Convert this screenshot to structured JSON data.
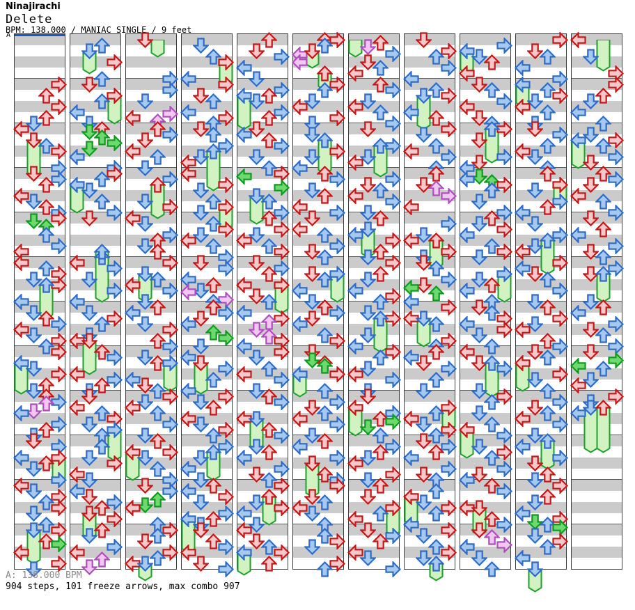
{
  "header": {
    "artist": "Ninajirachi",
    "title": "Delete",
    "meta": "BPM: 138.000 / MANIAC SINGLE / 9 feet"
  },
  "footer": {
    "section_bpm": "A: 138.000 BPM",
    "stats": "904 steps, 101 freeze arrows, max combo 907"
  },
  "colors": {
    "stripe_gray": "#cbcbcb",
    "stripe_white": "#ffffff",
    "measure_line": "#5a5a5a",
    "column_border": "#3c3c3c",
    "section_line": "#1a57c8",
    "notes": {
      "r": [
        "#f5c9c9",
        "#c01818"
      ],
      "b": [
        "#a8c9ee",
        "#2f6bc4"
      ],
      "g": [
        "#6fd96f",
        "#0f9a1f"
      ],
      "p": [
        "#f0c8f0",
        "#b14cc0"
      ],
      "freeze": [
        "#d2f2c2",
        "#18a228"
      ]
    }
  },
  "chart": {
    "section_label": "A",
    "columns": [
      {
        "section": "A",
        "measures": [
          "........",
          "R.U.R.UD",
          "L..UR..R",
          "DRU.LDUR",
          "R..U.RL.",
          "LURDR..L",
          ".DURLDRU",
          "R..DR.UD",
          "UR.L.RUD",
          "DR.LUD.R",
          "LDRURD.U",
          "R.U.L.RD"
        ],
        "extras": [
          [
            65,
            1,
            "g"
          ],
          [
            67,
            2,
            "g"
          ],
          [
            130.67,
            2,
            "p"
          ],
          [
            133.33,
            1,
            "p"
          ],
          [
            181,
            3,
            "g"
          ]
        ],
        "freezes": [
          [
            36,
            1,
            11,
            "r"
          ],
          [
            88,
            2,
            10,
            "b"
          ],
          [
            116,
            0,
            9,
            "b"
          ],
          [
            150,
            3,
            7,
            "r"
          ],
          [
            176,
            1,
            10,
            "b"
          ]
        ]
      },
      {
        "measures": [
          ".U..R..U",
          "D..U.L.D",
          "U....L.R",
          "RU.D.U.R",
          "D......U",
          "LR.D.R.L",
          ".DRU.DL.",
          "UR..LRUD",
          "D.LURD.U",
          ".U.DR.LD",
          ".LDRU.R.",
          "UD.RL..."
        ],
        "extras": [
          [
            33,
            1,
            "g"
          ],
          [
            35,
            2,
            "g"
          ],
          [
            37,
            3,
            "g"
          ],
          [
            39,
            1,
            "g"
          ],
          [
            186.67,
            2,
            "p"
          ],
          [
            189.33,
            1,
            "p"
          ]
        ],
        "freezes": [
          [
            4,
            1,
            6,
            "b"
          ],
          [
            20,
            3,
            8,
            "r"
          ],
          [
            52,
            0,
            8,
            "b"
          ],
          [
            76,
            2,
            16,
            "b"
          ],
          [
            108,
            1,
            10,
            "r"
          ],
          [
            140,
            3,
            9,
            "b"
          ],
          [
            170,
            1,
            7,
            "r"
          ]
        ]
      },
      {
        "measures": [
          "D......R",
          ".R.D..L.",
          "URD.LU.D",
          ".R...DR.",
          "LD.RUDU.",
          "R..ULR.D",
          "UL.DR.UR",
          ".DU..LDU",
          "RDLU.R.D",
          "U.RD.U.R",
          "DR..L..U",
          "RUD.RUL."
        ],
        "extras": [
          [
            26.67,
            3,
            "p"
          ],
          [
            29.33,
            2,
            "p"
          ],
          [
            165,
            2,
            "g"
          ],
          [
            167,
            1,
            "g"
          ]
        ],
        "freezes": [
          [
            0,
            2,
            4,
            "n"
          ],
          [
            52,
            2,
            10,
            "r"
          ],
          [
            84,
            1,
            8,
            "b"
          ],
          [
            116,
            3,
            8,
            "b"
          ],
          [
            148,
            0,
            8,
            "r"
          ],
          [
            188,
            1,
            4,
            "b"
          ]
        ]
      },
      {
        "measures": [
          ".D.U...L",
          "R.DU.LRU",
          "DU.R.DL.",
          "L.RD.U.D",
          ".URDLU.R",
          "DR.LUD.U",
          "URDL...D",
          ".L.R.U.L",
          "RDU.LDRU",
          ".R.D.L.D",
          "ULRD.RUD",
          "D.URL.DR"
        ],
        "extras": [
          [
            90.67,
            0,
            "p"
          ],
          [
            93.33,
            3,
            "p"
          ],
          [
            105,
            2,
            "g"
          ],
          [
            107,
            3,
            "g"
          ]
        ],
        "freezes": [
          [
            8,
            3,
            6,
            "r"
          ],
          [
            40,
            2,
            12,
            "b"
          ],
          [
            60,
            3,
            6,
            "r"
          ],
          [
            116,
            1,
            9,
            "r"
          ],
          [
            148,
            2,
            8,
            "b"
          ],
          [
            172,
            0,
            10,
            "b"
          ]
        ]
      },
      {
        "measures": [
          "U.DR.L.D",
          ".RUD.RU.",
          "DLUR.D.U",
          "R....U.R",
          "U.RDLUR.",
          "DRU.L.DU",
          ".LR...RL",
          "RD.ULR.D",
          "UR..L.UR",
          ".DUL.RDU",
          "R..DRL.D",
          "L.DUR.U."
        ],
        "extras": [
          [
            49,
            0,
            "g"
          ],
          [
            53,
            3,
            "g"
          ],
          [
            101.33,
            2,
            "p"
          ],
          [
            104,
            1,
            "p"
          ],
          [
            106.67,
            2,
            "p"
          ]
        ],
        "freezes": [
          [
            20,
            0,
            10,
            "b"
          ],
          [
            56,
            1,
            8,
            "b"
          ],
          [
            88,
            3,
            8,
            "r"
          ],
          [
            136,
            1,
            9,
            "b"
          ],
          [
            164,
            2,
            8,
            "r"
          ],
          [
            184,
            0,
            6,
            "b"
          ]
        ]
      },
      {
        "measures": [
          "UU......",
          "RU.DL.RD",
          ".D..RD.L",
          "UR.DU.LR",
          "D.LU.RDU",
          "..DU.L.D",
          "URDL.UR.",
          "D.U.R..U",
          ".RDULR.D",
          "UL.R..UR",
          "R.DULD.U",
          ".URD..RU"
        ],
        "extras": [
          [
            0,
            3,
            "r"
          ],
          [
            5.33,
            0,
            "p"
          ],
          [
            8,
            0,
            "p"
          ],
          [
            115,
            1,
            "g"
          ],
          [
            117,
            2,
            "g"
          ]
        ],
        "freezes": [
          [
            4,
            1,
            4,
            "r"
          ],
          [
            12,
            2,
            4,
            "r"
          ],
          [
            36,
            2,
            10,
            "b"
          ],
          [
            84,
            3,
            8,
            "b"
          ],
          [
            120,
            0,
            6,
            "b"
          ],
          [
            152,
            1,
            10,
            "r"
          ]
        ]
      },
      {
        "measures": [
          "....D.L.",
          "UR.DLU.R",
          "D..R.DL.",
          ".RDULR.D",
          "U..LR.UD",
          "R.UD.LRU",
          ".DR..D.L",
          "RU.DLR.D",
          "D..RU..U",
          ".RUDL.RD",
          "U.D..UL.",
          "DRU.LD.R"
        ],
        "extras": [
          [
            1,
            2,
            "r"
          ],
          [
            2.67,
            1,
            "p"
          ],
          [
            5,
            3,
            "b"
          ],
          [
            10,
            2,
            "b"
          ],
          [
            137,
            3,
            "g"
          ],
          [
            139,
            1,
            "g"
          ]
        ],
        "freezes": [
          [
            0,
            0,
            4,
            "n"
          ],
          [
            38,
            2,
            9,
            "b"
          ],
          [
            68,
            1,
            8,
            "b"
          ],
          [
            100,
            2,
            10,
            "b"
          ],
          [
            132,
            0,
            8,
            "r"
          ],
          [
            168,
            3,
            8,
            "r"
          ]
        ]
      },
      {
        "measures": [
          "D.RU.R.L",
          ".UR..LU.",
          "RD.ULR.U",
          "U.D...L.",
          ".R.DL.RD",
          "DU.RD..L",
          "R.LU..RU",
          "ULDR.U.D",
          "...ULDRU",
          "DRUL.RDU",
          ".U.DRU.L",
          "RD.URD.."
        ],
        "extras": [
          [
            53.33,
            2,
            "p"
          ],
          [
            56,
            3,
            "p"
          ],
          [
            89,
            0,
            "g"
          ],
          [
            91,
            2,
            "g"
          ]
        ],
        "freezes": [
          [
            20,
            1,
            10,
            "b"
          ],
          [
            72,
            2,
            8,
            "r"
          ],
          [
            100,
            1,
            8,
            "b"
          ],
          [
            132,
            3,
            6,
            "r"
          ],
          [
            164,
            0,
            8,
            "r"
          ],
          [
            188,
            2,
            4,
            "b"
          ]
        ]
      },
      {
        "measures": [
          ".R.DU.L.",
          "DU.RL.DU",
          "R.D..RDL",
          ".LRU.D.R",
          "UDRL.URD",
          "...DUL.U",
          "DURLRD.U",
          "L.DR...D",
          "RU.D.U.R",
          ".DRU.RDL",
          "UR..L.UR",
          "D..L.D.U"
        ],
        "extras": [
          [
            49,
            1,
            "g"
          ],
          [
            51,
            2,
            "g"
          ],
          [
            178.67,
            2,
            "p"
          ],
          [
            181.33,
            3,
            "p"
          ]
        ],
        "freezes": [
          [
            4,
            0,
            6,
            "b"
          ],
          [
            32,
            2,
            10,
            "b"
          ],
          [
            84,
            3,
            8,
            "b"
          ],
          [
            116,
            2,
            10,
            "b"
          ],
          [
            140,
            0,
            8,
            "r"
          ],
          [
            168,
            1,
            8,
            "r"
          ]
        ]
      },
      {
        "measures": [
          "R.DU.L.R",
          ".URDLU.D",
          "DR.ULD.U",
          "U..D.RUL",
          ".D.R.DL.",
          "RLDU.R.D",
          "U.RDL.UR",
          "DU..RD.U",
          ".RDULR.D",
          ".L.RD.UD",
          "R.UD.LRU",
          ".DRU.L.."
        ],
        "extras": [
          [
            173,
            1,
            "g"
          ],
          [
            175,
            3,
            "g"
          ]
        ],
        "freezes": [
          [
            16,
            0,
            6,
            "b"
          ],
          [
            52,
            3,
            5,
            "r"
          ],
          [
            72,
            2,
            10,
            "b"
          ],
          [
            116,
            0,
            8,
            "r"
          ],
          [
            144,
            2,
            8,
            "b"
          ],
          [
            190,
            1,
            6,
            "b"
          ]
        ]
      },
      {
        "measures": [
          "L..D..R.",
          "R.UD.L.U",
          ".DRU.RD.",
          "URD.LU.R",
          "D.UL.RDU",
          ".RD....D",
          "UL.RDU.R",
          "D..U.DL.",
          "RD.L....",
          "........",
          "........",
          "........"
        ],
        "extras": [
          [
            115,
            3,
            "g"
          ],
          [
            117,
            0,
            "g"
          ]
        ],
        "freezes": [
          [
            0,
            2,
            9,
            "n"
          ],
          [
            36,
            0,
            8,
            "b"
          ],
          [
            84,
            2,
            8,
            "b"
          ],
          [
            132,
            1,
            14,
            "b"
          ],
          [
            132,
            2,
            14,
            "r"
          ]
        ]
      }
    ]
  }
}
